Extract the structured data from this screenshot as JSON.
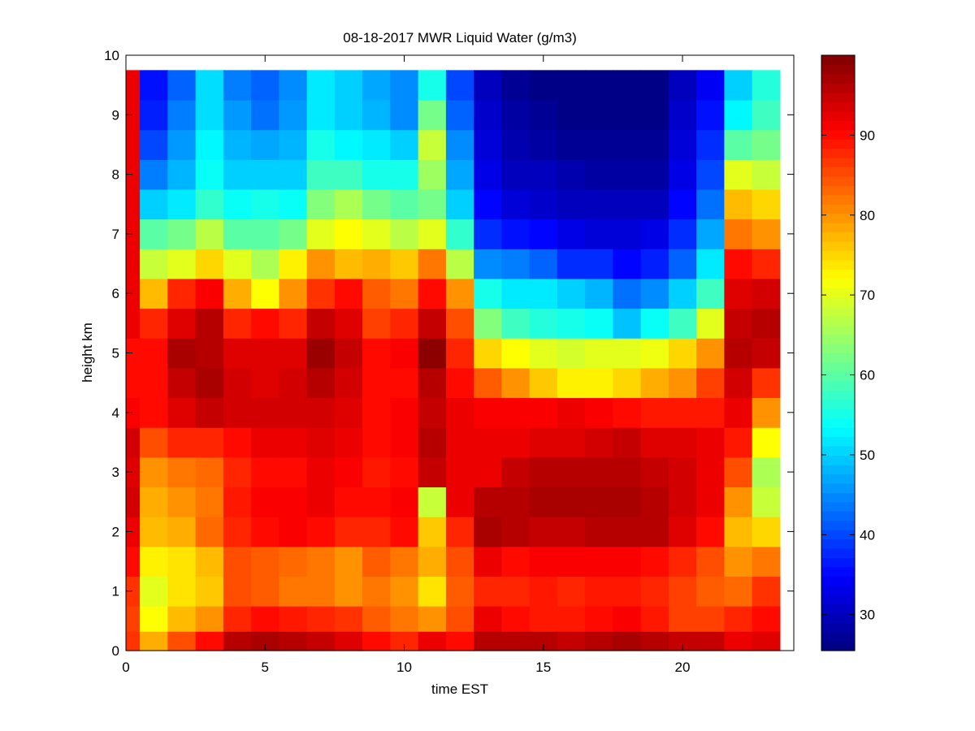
{
  "chart_data": {
    "type": "heatmap",
    "title": "08-18-2017 MWR Liquid Water (g/m3)",
    "xlabel": "time EST",
    "ylabel": "height km",
    "xlim": [
      0,
      24
    ],
    "ylim": [
      0,
      10
    ],
    "x_ticks": [
      0,
      5,
      10,
      15,
      20
    ],
    "y_ticks": [
      0,
      1,
      2,
      3,
      4,
      5,
      6,
      7,
      8,
      9,
      10
    ],
    "colorbar": {
      "colormap": "jet",
      "range": [
        25.5,
        100
      ],
      "ticks": [
        30,
        40,
        50,
        60,
        70,
        80,
        90
      ],
      "placement": "right"
    },
    "x_centers": [
      0,
      1,
      2,
      3,
      4,
      5,
      6,
      7,
      8,
      9,
      10,
      11,
      12,
      13,
      14,
      15,
      16,
      17,
      18,
      19,
      20,
      21,
      22,
      23
    ],
    "y_centers": [
      0.15,
      0.5,
      1,
      1.5,
      2,
      2.5,
      3,
      3.5,
      4,
      4.5,
      5,
      5.5,
      6,
      6.5,
      7,
      7.5,
      8,
      8.5,
      9,
      9.5
    ],
    "values": [
      [
        87,
        86,
        87,
        90,
        92,
        94,
        93,
        94,
        91,
        90,
        90,
        92,
        92,
        92,
        92,
        92,
        92,
        92,
        92,
        92
      ],
      [
        78,
        72,
        70,
        73,
        77,
        78,
        80,
        85,
        90,
        90,
        90,
        88,
        77,
        68,
        60,
        50,
        44,
        40,
        37,
        36
      ],
      [
        85,
        77,
        74,
        74,
        78,
        80,
        82,
        88,
        93,
        95,
        97,
        93,
        88,
        70,
        62,
        52,
        48,
        46,
        44,
        42
      ],
      [
        90,
        80,
        76,
        77,
        83,
        82,
        83,
        88,
        95,
        97,
        96,
        96,
        91,
        75,
        67,
        57,
        54,
        53,
        51,
        51
      ],
      [
        96,
        88,
        85,
        85,
        88,
        89,
        88,
        90,
        94,
        94,
        93,
        88,
        78,
        70,
        60,
        54,
        50,
        48,
        46,
        44
      ],
      [
        97,
        90,
        84,
        84,
        90,
        91,
        90,
        92,
        94,
        93,
        93,
        90,
        72,
        66,
        60,
        55,
        50,
        47,
        43,
        42
      ],
      [
        96,
        89,
        82,
        83,
        91,
        91,
        90,
        92,
        94,
        94,
        93,
        88,
        80,
        73,
        62,
        54,
        50,
        48,
        46,
        45
      ],
      [
        95,
        88,
        82,
        82,
        90,
        92,
        92,
        93,
        94,
        96,
        98,
        95,
        87,
        80,
        70,
        63,
        58,
        55,
        52,
        52
      ],
      [
        93,
        87,
        80,
        80,
        88,
        90,
        91,
        92,
        93,
        94,
        95,
        93,
        90,
        77,
        72,
        66,
        58,
        53,
        50,
        50
      ],
      [
        90,
        84,
        82,
        84,
        88,
        90,
        89,
        90,
        90,
        90,
        90,
        86,
        84,
        78,
        70,
        62,
        55,
        52,
        48,
        47
      ],
      [
        88,
        82,
        80,
        82,
        90,
        91,
        90,
        91,
        91,
        90,
        91,
        88,
        82,
        76,
        67,
        60,
        55,
        50,
        45,
        45
      ],
      [
        92,
        80,
        74,
        78,
        76,
        68,
        95,
        96,
        95,
        96,
        99,
        95,
        90,
        82,
        70,
        62,
        65,
        68,
        62,
        55
      ],
      [
        90,
        85,
        84,
        85,
        88,
        92,
        92,
        92,
        92,
        90,
        88,
        85,
        80,
        67,
        57,
        50,
        47,
        45,
        42,
        40
      ],
      [
        96,
        92,
        88,
        92,
        97,
        96,
        92,
        92,
        91,
        84,
        75,
        63,
        55,
        45,
        38,
        35,
        33,
        32,
        31,
        30
      ],
      [
        96,
        90,
        88,
        90,
        96,
        96,
        95,
        92,
        91,
        80,
        72,
        58,
        52,
        44,
        36,
        32,
        30,
        29,
        28,
        27
      ],
      [
        96,
        89,
        89,
        91,
        95,
        97,
        96,
        93,
        91,
        76,
        70,
        56,
        52,
        42,
        35,
        31,
        30,
        28,
        27,
        26
      ],
      [
        95,
        89,
        88,
        91,
        95,
        97,
        96,
        93,
        92,
        73,
        69,
        55,
        50,
        38,
        33,
        30,
        29,
        27,
        26,
        26
      ],
      [
        96,
        90,
        89,
        91,
        96,
        97,
        96,
        94,
        91,
        73,
        70,
        54,
        48,
        38,
        32,
        30,
        28,
        27,
        26,
        26
      ],
      [
        97,
        91,
        89,
        91,
        96,
        97,
        96,
        95,
        90,
        75,
        70,
        49,
        43,
        35,
        32,
        30,
        28,
        27,
        26,
        26
      ],
      [
        96,
        89,
        88,
        90,
        96,
        96,
        95,
        93,
        89,
        78,
        71,
        54,
        45,
        37,
        33,
        30,
        28,
        27,
        26,
        26
      ],
      [
        95,
        86,
        86,
        88,
        93,
        94,
        94,
        93,
        89,
        80,
        75,
        58,
        50,
        42,
        38,
        35,
        33,
        32,
        31,
        30
      ],
      [
        95,
        86,
        84,
        85,
        90,
        92,
        92,
        92,
        89,
        86,
        80,
        70,
        58,
        52,
        47,
        43,
        40,
        38,
        36,
        34
      ],
      [
        92,
        88,
        83,
        80,
        77,
        80,
        85,
        89,
        92,
        94,
        96,
        95,
        93,
        90,
        82,
        77,
        70,
        60,
        53,
        50
      ],
      [
        93,
        90,
        87,
        82,
        75,
        68,
        66,
        72,
        80,
        87,
        95,
        96,
        94,
        88,
        80,
        75,
        68,
        62,
        58,
        56
      ]
    ]
  }
}
